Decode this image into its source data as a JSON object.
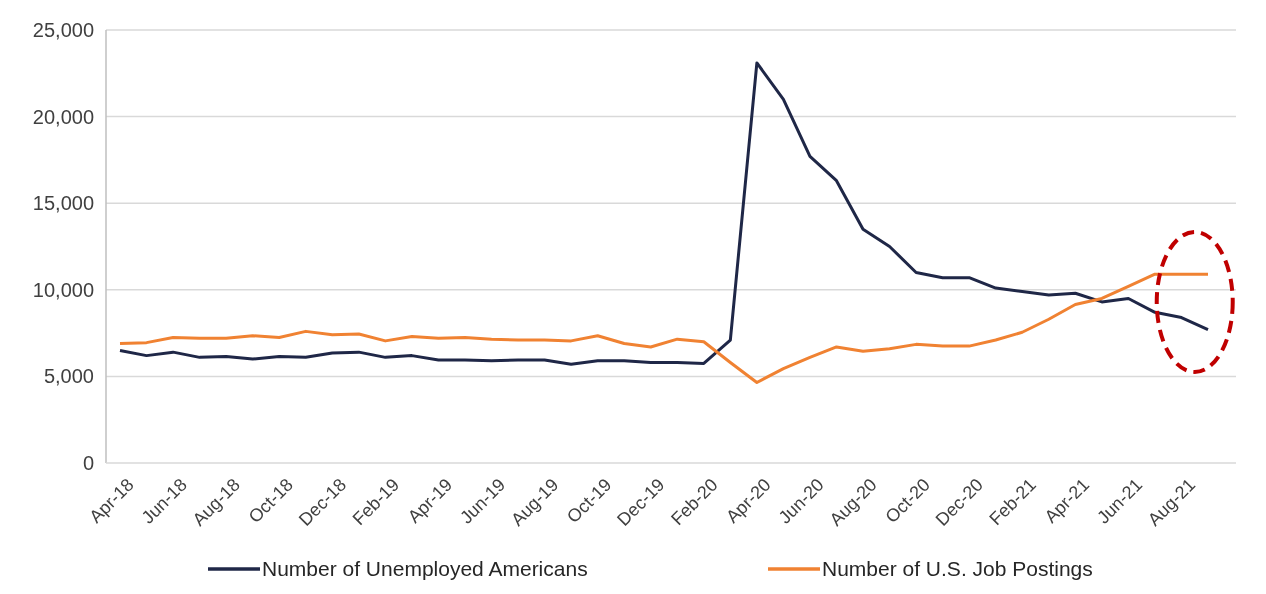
{
  "chart_data": {
    "type": "line",
    "categories": [
      "Apr-18",
      null,
      "Jun-18",
      null,
      "Aug-18",
      null,
      "Oct-18",
      null,
      "Dec-18",
      null,
      "Feb-19",
      null,
      "Apr-19",
      null,
      "Jun-19",
      null,
      "Aug-19",
      null,
      "Oct-19",
      null,
      "Dec-19",
      null,
      "Feb-20",
      null,
      "Apr-20",
      null,
      "Jun-20",
      null,
      "Aug-20",
      null,
      "Oct-20",
      null,
      "Dec-20",
      null,
      "Feb-21",
      null,
      "Apr-21",
      null,
      "Jun-21",
      null,
      "Aug-21",
      null
    ],
    "series": [
      {
        "name": "Number of Unemployed Americans",
        "color": "#1f2747",
        "values": [
          6500,
          6200,
          6400,
          6100,
          6150,
          6000,
          6150,
          6100,
          6350,
          6400,
          6100,
          6200,
          5950,
          5950,
          5900,
          5950,
          5950,
          5700,
          5900,
          5900,
          5800,
          5800,
          5750,
          7100,
          23100,
          21000,
          17700,
          16300,
          13500,
          12500,
          11000,
          10700,
          10700,
          10100,
          9900,
          9700,
          9800,
          9300,
          9500,
          8700,
          8400,
          7700
        ]
      },
      {
        "name": "Number of U.S. Job Postings",
        "color": "#f08232",
        "values": [
          6900,
          6950,
          7250,
          7200,
          7200,
          7350,
          7250,
          7600,
          7400,
          7450,
          7050,
          7300,
          7200,
          7250,
          7150,
          7100,
          7100,
          7050,
          7350,
          6900,
          6700,
          7150,
          7000,
          5800,
          4650,
          5450,
          6100,
          6700,
          6450,
          6600,
          6850,
          6750,
          6750,
          7100,
          7550,
          8300,
          9150,
          9500,
          10200,
          10900,
          10900,
          10900
        ]
      }
    ],
    "ylim": [
      0,
      25000
    ],
    "yticks": [
      {
        "value": 0,
        "label": "0"
      },
      {
        "value": 5000,
        "label": "5,000"
      },
      {
        "value": 10000,
        "label": "10,000"
      },
      {
        "value": 15000,
        "label": "15,000"
      },
      {
        "value": 20000,
        "label": "20,000"
      },
      {
        "value": 25000,
        "label": "25,000"
      }
    ],
    "grid": "y",
    "legend": "bottom",
    "marker": "none",
    "line_style": "solid"
  }
}
